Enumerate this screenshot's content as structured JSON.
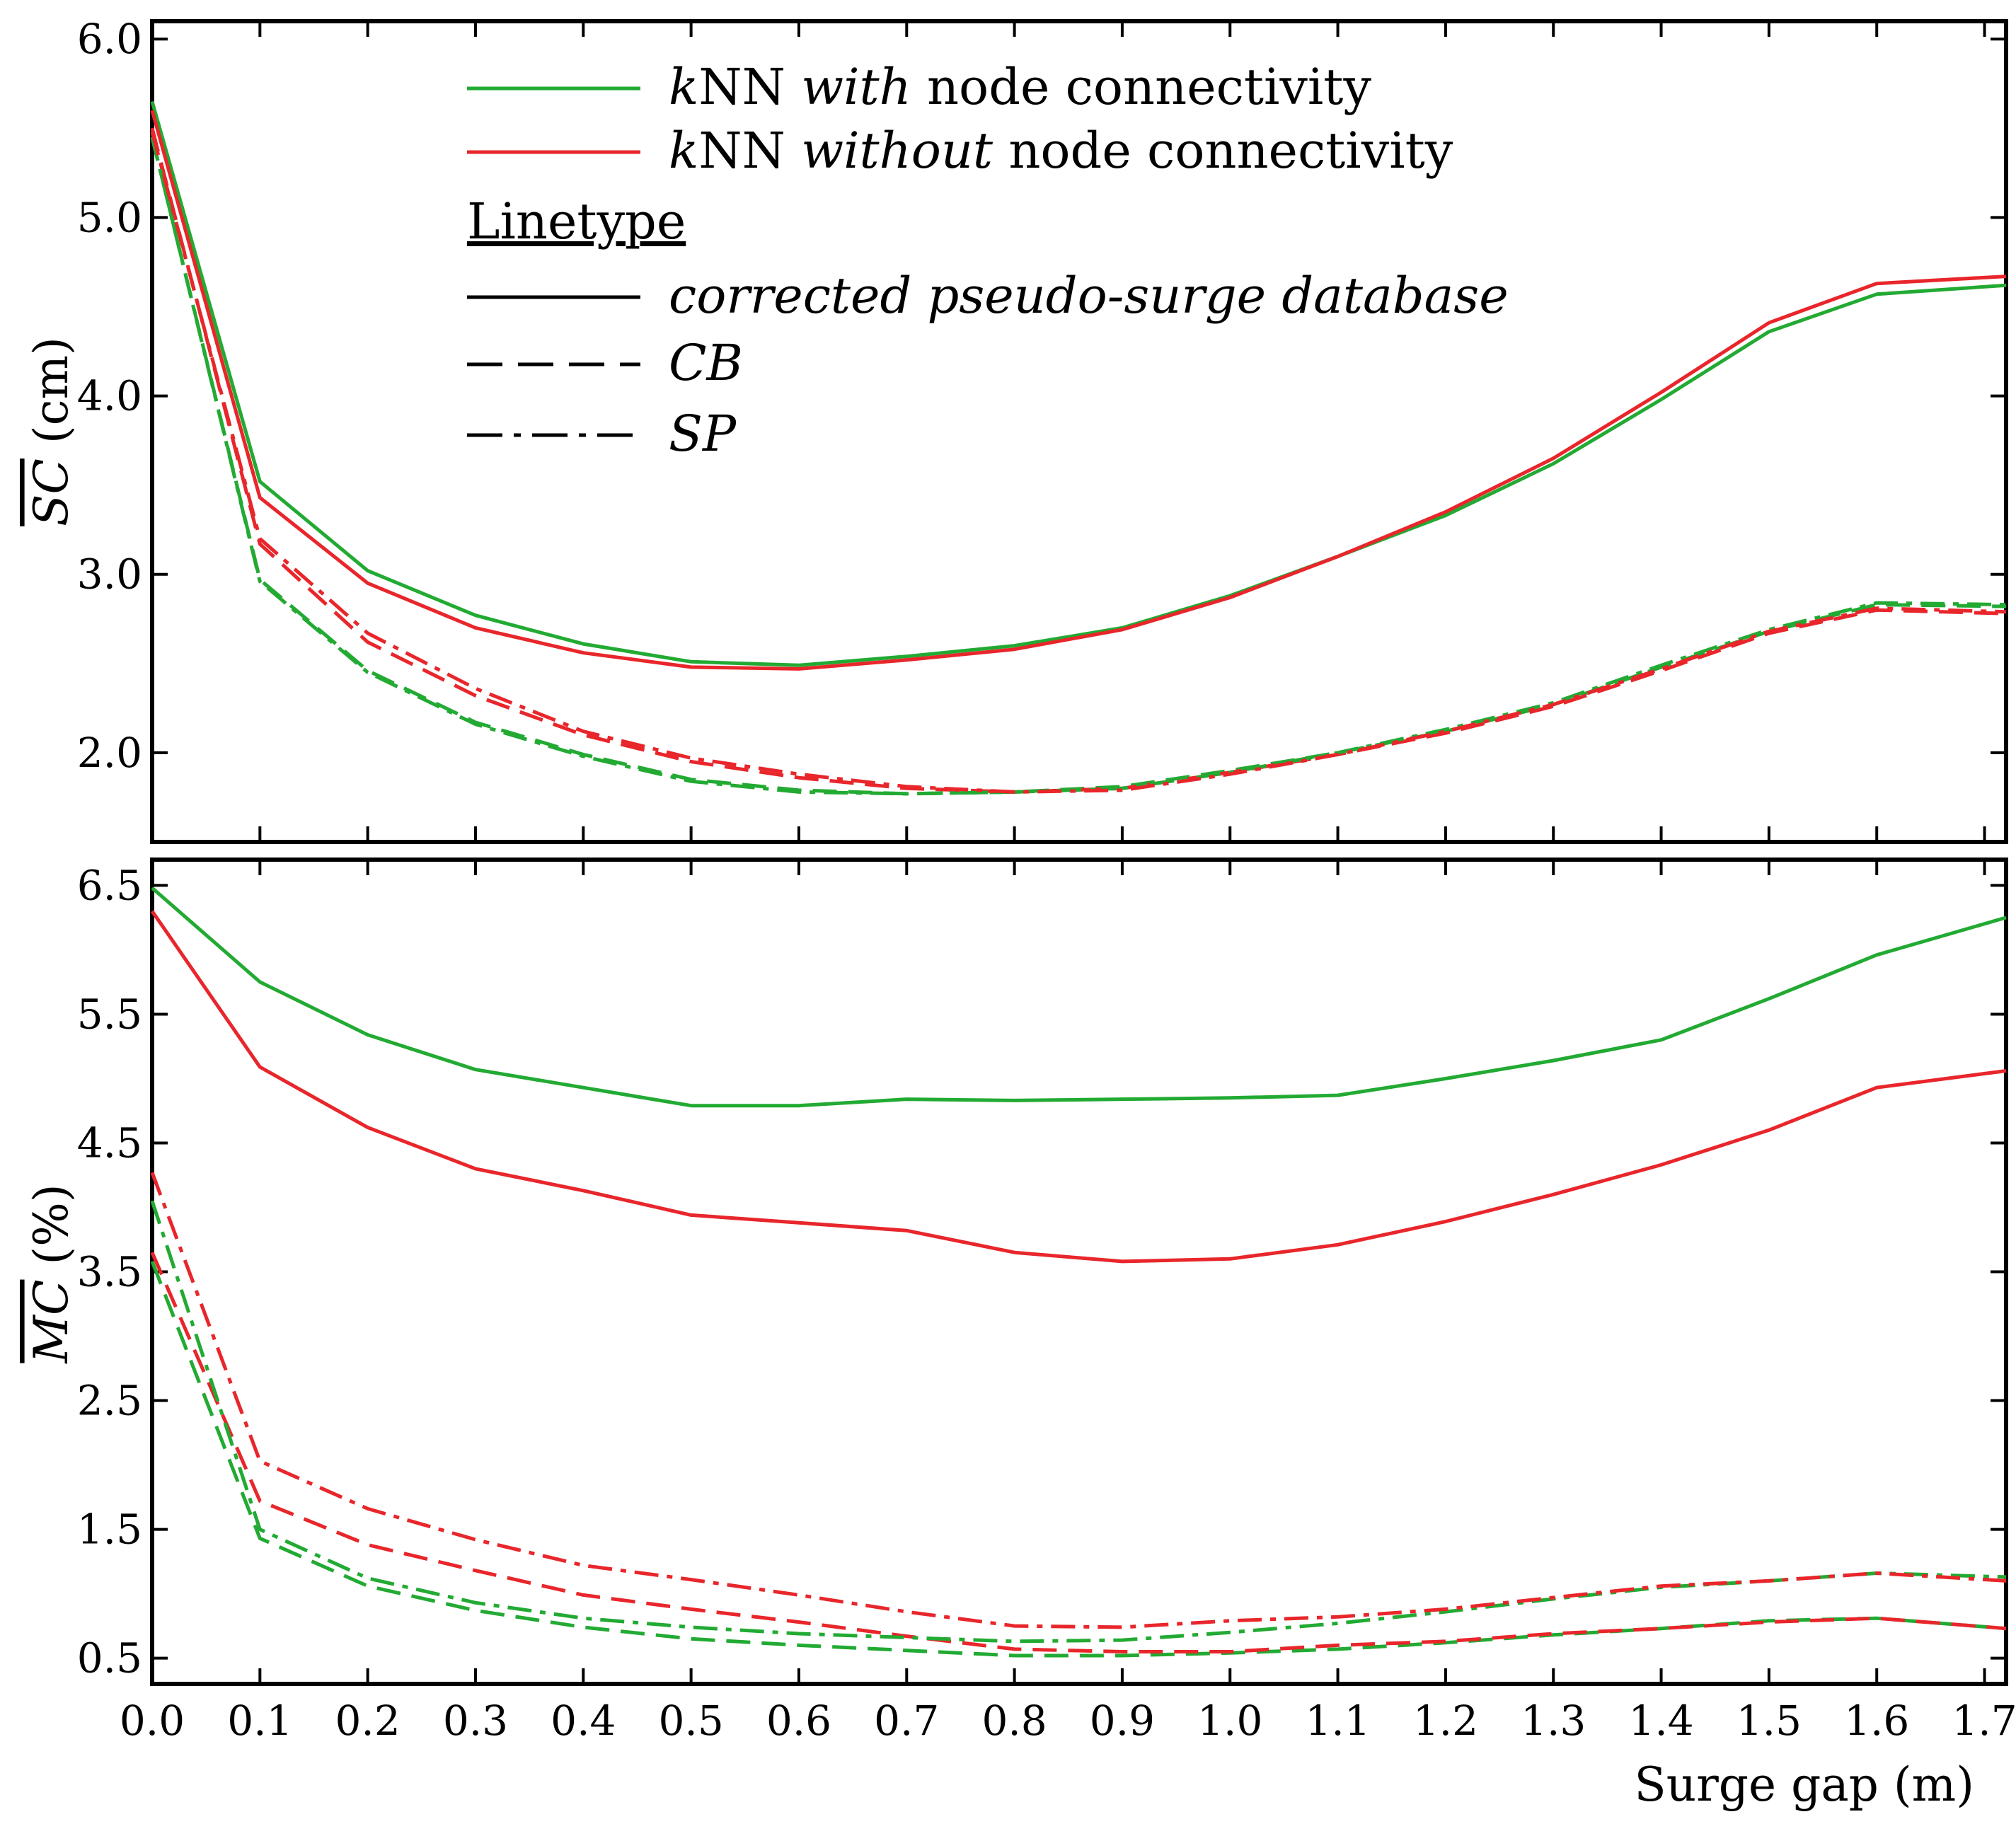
{
  "chart_data": [
    {
      "type": "line",
      "panel": "top",
      "ylabel_main": "SC",
      "ylabel_unit": " (cm)",
      "xlabel": "Surge gap (m)",
      "ylim": [
        1.5,
        6.1
      ],
      "xlim": [
        0.0,
        1.72
      ],
      "yticks": [
        2.0,
        3.0,
        4.0,
        5.0,
        6.0
      ],
      "ytick_labels": [
        "2.0",
        "3.0",
        "4.0",
        "5.0",
        "6.0"
      ],
      "x": [
        0.0,
        0.1,
        0.2,
        0.3,
        0.4,
        0.5,
        0.6,
        0.7,
        0.8,
        0.9,
        1.0,
        1.1,
        1.2,
        1.3,
        1.4,
        1.5,
        1.6,
        1.72
      ],
      "series": [
        {
          "name": "with-corrected",
          "color": "#22aa33",
          "dash": "solid",
          "values": [
            5.65,
            3.52,
            3.02,
            2.77,
            2.61,
            2.51,
            2.49,
            2.54,
            2.6,
            2.7,
            2.88,
            3.1,
            3.33,
            3.62,
            3.98,
            4.36,
            4.57,
            4.62
          ]
        },
        {
          "name": "without-corrected",
          "color": "#e8262b",
          "dash": "solid",
          "values": [
            5.6,
            3.43,
            2.95,
            2.7,
            2.56,
            2.48,
            2.47,
            2.52,
            2.58,
            2.69,
            2.87,
            3.1,
            3.35,
            3.65,
            4.02,
            4.41,
            4.63,
            4.67
          ]
        },
        {
          "name": "with-CB",
          "color": "#22aa33",
          "dash": "dashed",
          "values": [
            5.45,
            2.97,
            2.46,
            2.17,
            1.99,
            1.85,
            1.79,
            1.77,
            1.78,
            1.81,
            1.9,
            2.0,
            2.12,
            2.27,
            2.48,
            2.68,
            2.83,
            2.82
          ]
        },
        {
          "name": "with-SP",
          "color": "#22aa33",
          "dash": "dashdot",
          "values": [
            5.45,
            2.96,
            2.45,
            2.16,
            1.98,
            1.84,
            1.78,
            1.77,
            1.78,
            1.8,
            1.89,
            2.0,
            2.13,
            2.28,
            2.49,
            2.69,
            2.84,
            2.83
          ]
        },
        {
          "name": "without-CB",
          "color": "#e8262b",
          "dash": "dashed",
          "values": [
            5.5,
            3.17,
            2.62,
            2.32,
            2.1,
            1.95,
            1.86,
            1.8,
            1.78,
            1.8,
            1.89,
            1.99,
            2.11,
            2.26,
            2.46,
            2.67,
            2.8,
            2.78
          ]
        },
        {
          "name": "without-SP",
          "color": "#e8262b",
          "dash": "dashdot",
          "values": [
            5.48,
            3.2,
            2.67,
            2.36,
            2.12,
            1.97,
            1.88,
            1.81,
            1.78,
            1.79,
            1.88,
            1.99,
            2.12,
            2.27,
            2.47,
            2.68,
            2.81,
            2.79
          ]
        }
      ],
      "legend": {
        "placement": "top-center",
        "entries": [
          {
            "prefix": "k",
            "mid": "NN ",
            "emph": "with",
            "suffix": " node connectivity",
            "color": "#22aa33",
            "dash": "solid"
          },
          {
            "prefix": "k",
            "mid": "NN ",
            "emph": "without",
            "suffix": " node connectivity",
            "color": "#e8262b",
            "dash": "solid"
          },
          {
            "heading": "Linetype"
          },
          {
            "label": "corrected pseudo-surge database",
            "color": "#000000",
            "dash": "solid"
          },
          {
            "label": "CB",
            "color": "#000000",
            "dash": "dashed"
          },
          {
            "label": "SP",
            "color": "#000000",
            "dash": "dashdot"
          }
        ]
      }
    },
    {
      "type": "line",
      "panel": "bottom",
      "ylabel_main": "MC",
      "ylabel_unit": " (%)",
      "xlabel": "Surge gap (m)",
      "ylim": [
        0.3,
        6.7
      ],
      "xlim": [
        0.0,
        1.72
      ],
      "yticks": [
        0.5,
        1.5,
        2.5,
        3.5,
        4.5,
        5.5,
        6.5
      ],
      "ytick_labels": [
        "0.5",
        "1.5",
        "2.5",
        "3.5",
        "4.5",
        "5.5",
        "6.5"
      ],
      "x": [
        0.0,
        0.1,
        0.2,
        0.3,
        0.4,
        0.5,
        0.6,
        0.7,
        0.8,
        0.9,
        1.0,
        1.1,
        1.2,
        1.3,
        1.4,
        1.5,
        1.6,
        1.72
      ],
      "xticks": [
        0.0,
        0.1,
        0.2,
        0.3,
        0.4,
        0.5,
        0.6,
        0.7,
        0.8,
        0.9,
        1.0,
        1.1,
        1.2,
        1.3,
        1.4,
        1.5,
        1.6,
        1.7
      ],
      "xtick_labels": [
        "0.0",
        "0.1",
        "0.2",
        "0.3",
        "0.4",
        "0.5",
        "0.6",
        "0.7",
        "0.8",
        "0.9",
        "1.0",
        "1.1",
        "1.2",
        "1.3",
        "1.4",
        "1.5",
        "1.6",
        "1.7"
      ],
      "series": [
        {
          "name": "with-corrected",
          "color": "#22aa33",
          "dash": "solid",
          "values": [
            6.48,
            5.75,
            5.34,
            5.07,
            4.93,
            4.79,
            4.79,
            4.84,
            4.83,
            4.84,
            4.85,
            4.87,
            5.0,
            5.14,
            5.3,
            5.62,
            5.96,
            6.25
          ]
        },
        {
          "name": "without-corrected",
          "color": "#e8262b",
          "dash": "solid",
          "values": [
            6.3,
            5.09,
            4.62,
            4.3,
            4.13,
            3.94,
            3.88,
            3.82,
            3.65,
            3.58,
            3.6,
            3.71,
            3.89,
            4.1,
            4.33,
            4.6,
            4.93,
            5.06
          ]
        },
        {
          "name": "with-CB",
          "color": "#22aa33",
          "dash": "dashed",
          "values": [
            3.58,
            1.43,
            1.06,
            0.87,
            0.74,
            0.65,
            0.6,
            0.56,
            0.52,
            0.52,
            0.54,
            0.57,
            0.62,
            0.68,
            0.73,
            0.79,
            0.81,
            0.73
          ]
        },
        {
          "name": "with-SP",
          "color": "#22aa33",
          "dash": "dashdot",
          "values": [
            4.05,
            1.5,
            1.12,
            0.93,
            0.81,
            0.74,
            0.69,
            0.66,
            0.63,
            0.64,
            0.7,
            0.77,
            0.86,
            0.96,
            1.05,
            1.1,
            1.16,
            1.13
          ]
        },
        {
          "name": "without-CB",
          "color": "#e8262b",
          "dash": "dashed",
          "values": [
            3.65,
            1.72,
            1.38,
            1.18,
            0.99,
            0.88,
            0.78,
            0.67,
            0.57,
            0.55,
            0.55,
            0.6,
            0.63,
            0.69,
            0.73,
            0.78,
            0.81,
            0.73
          ]
        },
        {
          "name": "without-SP",
          "color": "#e8262b",
          "dash": "dashdot",
          "values": [
            4.27,
            2.03,
            1.66,
            1.42,
            1.22,
            1.11,
            0.99,
            0.86,
            0.75,
            0.74,
            0.79,
            0.82,
            0.88,
            0.97,
            1.06,
            1.1,
            1.16,
            1.1
          ]
        }
      ]
    }
  ]
}
